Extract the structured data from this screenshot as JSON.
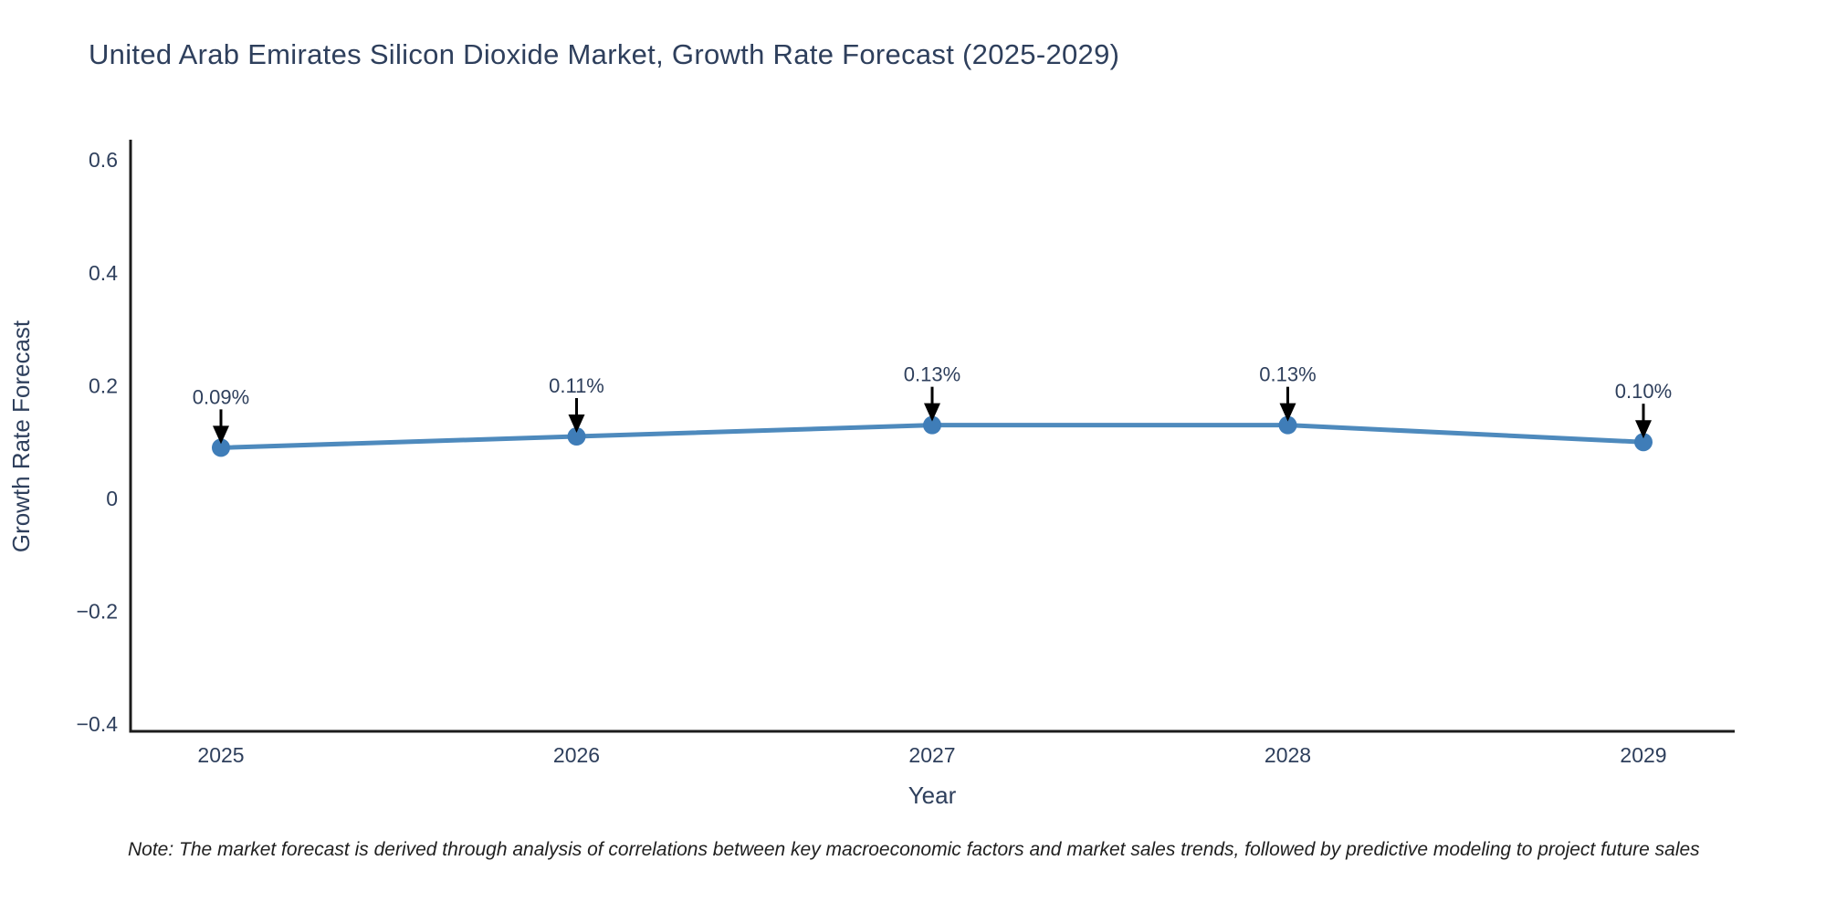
{
  "title": "United Arab Emirates Silicon Dioxide Market, Growth Rate Forecast (2025-2029)",
  "note": "Note: The market forecast is derived through analysis of correlations between key macroeconomic factors and market sales trends, followed by predictive modeling to project future sales",
  "chart_data": {
    "type": "line",
    "title": "United Arab Emirates Silicon Dioxide Market, Growth Rate Forecast (2025-2029)",
    "xlabel": "Year",
    "ylabel": "Growth Rate Forecast",
    "categories": [
      "2025",
      "2026",
      "2027",
      "2028",
      "2029"
    ],
    "x": [
      2025,
      2026,
      2027,
      2028,
      2029
    ],
    "values": [
      0.09,
      0.11,
      0.13,
      0.13,
      0.1
    ],
    "point_labels": [
      "0.09%",
      "0.11%",
      "0.13%",
      "0.13%",
      "0.10%"
    ],
    "ylim": [
      -0.4,
      0.6
    ],
    "ytick_values": [
      0.6,
      0.4,
      0.2,
      0,
      -0.2,
      -0.4
    ],
    "ytick_labels": [
      "0.6",
      "0.4",
      "0.2",
      "0",
      "−0.2",
      "−0.4"
    ],
    "grid": false,
    "legend": "none",
    "annotation_style": "value label with downward black arrow to each marker"
  },
  "colors": {
    "line": "#4e8abd",
    "marker": "#3f7db8",
    "axis": "#1c1c1c",
    "text": "#2e3f5c",
    "arrow": "#000000",
    "note_text": "#1f1f1f",
    "background": "#ffffff"
  }
}
